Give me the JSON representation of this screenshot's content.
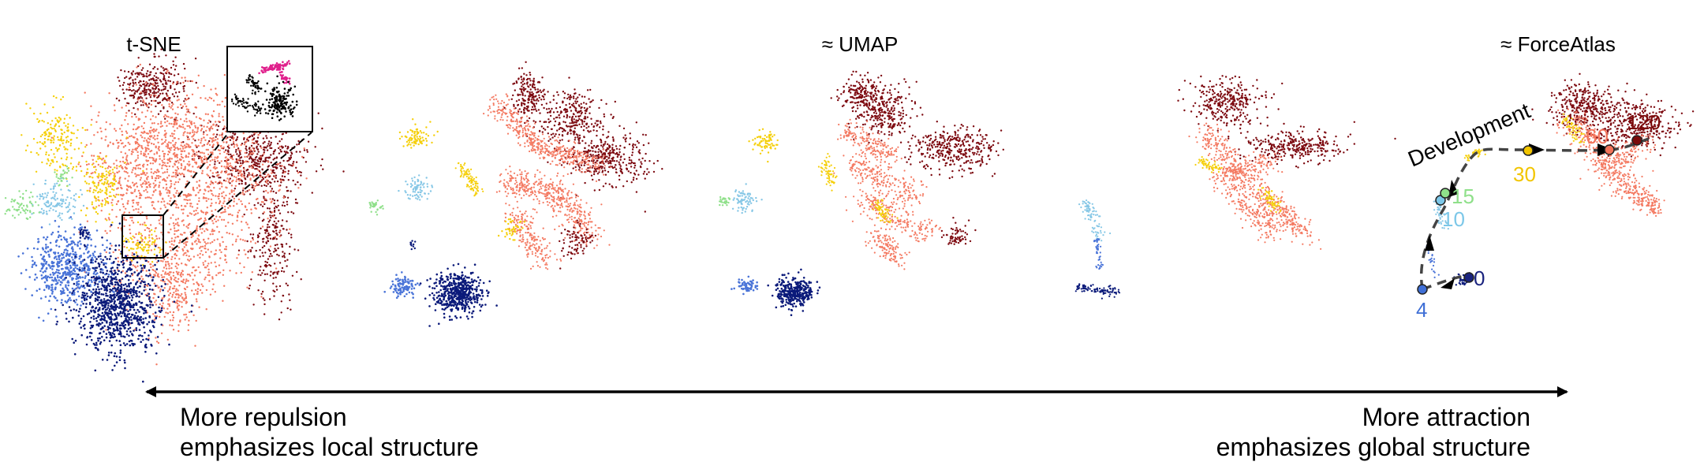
{
  "panels": [
    {
      "title": "t-SNE"
    },
    {
      "title": ""
    },
    {
      "title": "≈  UMAP"
    },
    {
      "title": ""
    },
    {
      "title": "≈  ForceAtlas"
    }
  ],
  "development": {
    "label": "Development",
    "time_labels": [
      {
        "text": "0",
        "color": "#1a237e"
      },
      {
        "text": "4",
        "color": "#3f6fd6"
      },
      {
        "text": "10",
        "color": "#7cc7e8"
      },
      {
        "text": "15",
        "color": "#8fe08a"
      },
      {
        "text": "30",
        "color": "#f2c500"
      },
      {
        "text": "60",
        "color": "#f2735a"
      },
      {
        "text": "120",
        "color": "#7a0a0a"
      }
    ]
  },
  "axis": {
    "left": {
      "line1": "More repulsion",
      "line2": "emphasizes local structure"
    },
    "right": {
      "line1": "More attraction",
      "line2": "emphasizes global structure"
    }
  },
  "colors": {
    "navy": "#0b1a7a",
    "blue": "#4a74d8",
    "lightblue": "#86c7e6",
    "green": "#8fe08a",
    "yellow": "#f5cf0a",
    "salmon": "#f47a62",
    "darkred": "#7d0a10",
    "magenta": "#e0208c"
  }
}
